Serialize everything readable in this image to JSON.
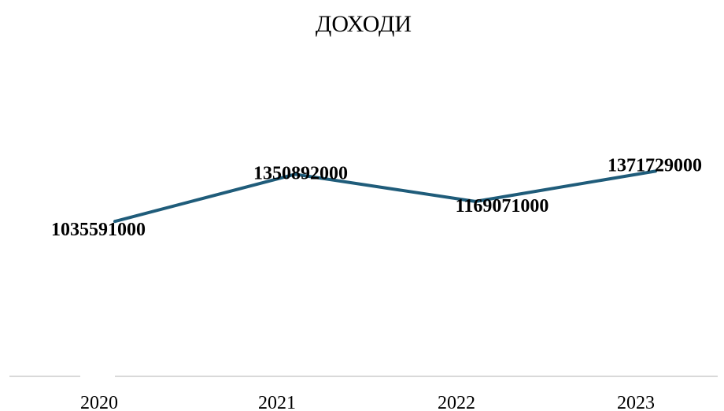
{
  "chart_data": {
    "type": "line",
    "title": "ДОХОДИ",
    "xlabel": "",
    "ylabel": "",
    "categories": [
      "2020",
      "2021",
      "2022",
      "2023"
    ],
    "series": [
      {
        "values": [
          1035591000,
          1350892000,
          1169071000,
          1371729000
        ],
        "color": "#1f5c7a"
      }
    ],
    "data_labels": [
      "1035591000",
      "1350892000",
      "1169071000",
      "1371729000"
    ],
    "ylim": [
      0,
      2200000000
    ],
    "grid": false,
    "legend": "none",
    "colors": {
      "line": "#1f5c7a",
      "axis": "#d9d9d9",
      "text": "#000000"
    }
  }
}
